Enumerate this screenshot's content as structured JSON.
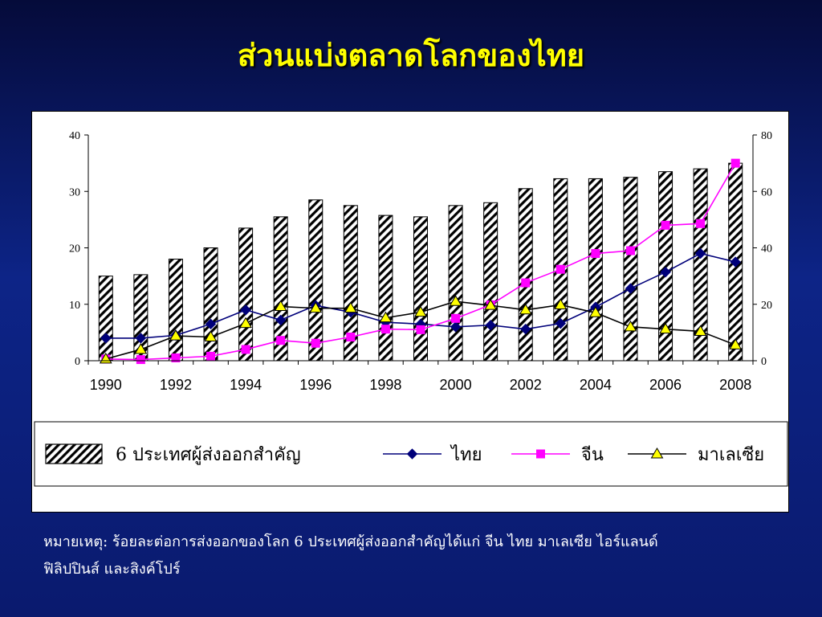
{
  "slide": {
    "title": "ส่วนแบ่งตลาดโลกของไทย",
    "note_line1": "หมายเหตุ: ร้อยละต่อการส่งออกของโลก  6 ประเทศผู้ส่งออกสำคัญได้แก่ จีน ไทย มาเลเซีย ไอร์แลนด์",
    "note_line2": "ฟิลิปปินส์ และสิงค์โปร์"
  },
  "colors": {
    "title": "#ffff00",
    "thailand": "#00007a",
    "china": "#ff00ff",
    "malaysia": "#000000",
    "malaysia_marker": "#ffff00"
  },
  "chart_data": {
    "type": "bar",
    "x": [
      1990,
      1991,
      1992,
      1993,
      1994,
      1995,
      1996,
      1997,
      1998,
      1999,
      2000,
      2001,
      2002,
      2003,
      2004,
      2005,
      2006,
      2007,
      2008
    ],
    "x_tick_labels": [
      "1990",
      "1992",
      "1994",
      "1996",
      "1998",
      "2000",
      "2002",
      "2004",
      "2006",
      "2008"
    ],
    "y_left_ticks": [
      "0",
      "10",
      "20",
      "30",
      "40"
    ],
    "y_right_ticks": [
      "0",
      "20",
      "40",
      "60",
      "80"
    ],
    "ylim_left": [
      0,
      40
    ],
    "ylim_right": [
      0,
      80
    ],
    "grid": false,
    "legend_position": "bottom",
    "series": [
      {
        "name": "6 ประเทศผู้ส่งออกสำคัญ",
        "type": "bar",
        "axis": "right",
        "values": [
          30,
          30.5,
          36,
          40,
          47,
          51,
          57,
          55,
          51.5,
          51,
          55,
          56,
          61,
          64.5,
          64.5,
          65,
          67,
          68,
          70
        ]
      },
      {
        "name": "ไทย",
        "type": "line",
        "axis": "left",
        "marker": "diamond",
        "values": [
          4,
          4,
          4.5,
          6.5,
          9,
          7.2,
          9.8,
          8.6,
          6.8,
          6.5,
          6,
          6.3,
          5.6,
          6.6,
          9.5,
          12.8,
          15.7,
          19,
          17.5
        ]
      },
      {
        "name": "จีน",
        "type": "line",
        "axis": "left",
        "marker": "square",
        "values": [
          0.3,
          0.2,
          0.5,
          0.8,
          2,
          3.6,
          3.1,
          4.2,
          5.6,
          5.5,
          7.5,
          9.9,
          13.8,
          16.2,
          19,
          19.5,
          24,
          24.3,
          35
        ]
      },
      {
        "name": "มาเลเซีย",
        "type": "line",
        "axis": "left",
        "marker": "triangle",
        "values": [
          0.3,
          2,
          4.4,
          4.2,
          6.6,
          9.6,
          9.3,
          9.3,
          7.6,
          8.6,
          10.5,
          9.8,
          9,
          9.9,
          8.5,
          6,
          5.6,
          5.2,
          2.8
        ]
      }
    ]
  }
}
